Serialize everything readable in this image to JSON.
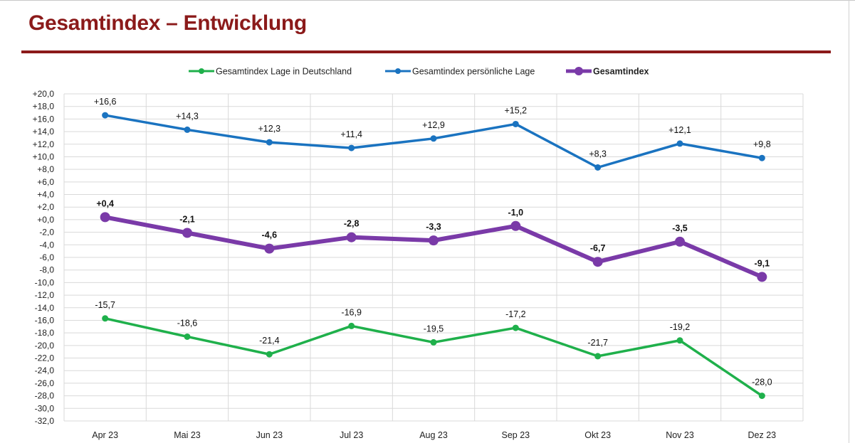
{
  "header": {
    "title": "Gesamtindex – Entwicklung"
  },
  "chart_data": {
    "type": "line",
    "title": "",
    "xlabel": "",
    "ylabel": "",
    "categories": [
      "Apr 23",
      "Mai 23",
      "Jun 23",
      "Jul 23",
      "Aug 23",
      "Sep 23",
      "Okt 23",
      "Nov 23",
      "Dez 23"
    ],
    "ylim": [
      -32,
      20
    ],
    "ytick_step": 2,
    "yticks": [
      "+20,0",
      "+18,0",
      "+16,0",
      "+14,0",
      "+12,0",
      "+10,0",
      "+8,0",
      "+6,0",
      "+4,0",
      "+2,0",
      "+0,0",
      "-2,0",
      "-4,0",
      "-6,0",
      "-8,0",
      "-10,0",
      "-12,0",
      "-14,0",
      "-16,0",
      "-18,0",
      "-20,0",
      "-22,0",
      "-24,0",
      "-26,0",
      "-28,0",
      "-30,0",
      "-32,0"
    ],
    "grid": true,
    "legend": "top",
    "series": [
      {
        "name": "Gesamtindex Lage in Deutschland",
        "color": "#1fb04b",
        "bold": false,
        "values": [
          -15.7,
          -18.6,
          -21.4,
          -16.9,
          -19.5,
          -17.2,
          -21.7,
          -19.2,
          -28.0
        ],
        "labels": [
          "-15,7",
          "-18,6",
          "-21,4",
          "-16,9",
          "-19,5",
          "-17,2",
          "-21,7",
          "-19,2",
          "-28,0"
        ]
      },
      {
        "name": "Gesamtindex persönliche Lage",
        "color": "#1a73c0",
        "bold": false,
        "values": [
          16.6,
          14.3,
          12.3,
          11.4,
          12.9,
          15.2,
          8.3,
          12.1,
          9.8
        ],
        "labels": [
          "+16,6",
          "+14,3",
          "+12,3",
          "+11,4",
          "+12,9",
          "+15,2",
          "+8,3",
          "+12,1",
          "+9,8"
        ]
      },
      {
        "name": "Gesamtindex",
        "color": "#7a3aa8",
        "bold": true,
        "values": [
          0.4,
          -2.1,
          -4.6,
          -2.8,
          -3.3,
          -1.0,
          -6.7,
          -3.5,
          -9.1
        ],
        "labels": [
          "+0,4",
          "-2,1",
          "-4,6",
          "-2,8",
          "-3,3",
          "-1,0",
          "-6,7",
          "-3,5",
          "-9,1"
        ]
      }
    ]
  }
}
